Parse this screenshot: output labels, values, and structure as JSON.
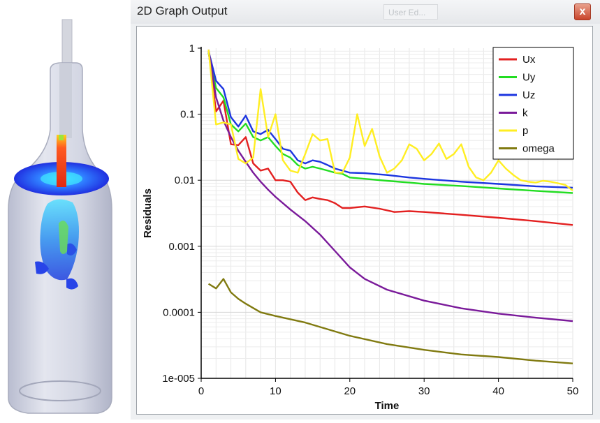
{
  "window": {
    "title": "2D Graph Output",
    "close_label": "x",
    "background_tab": "User Ed..."
  },
  "render_view": {
    "description_icon": "bottle-flow-render-icon"
  },
  "chart_data": {
    "type": "line",
    "title": "",
    "xlabel": "Time",
    "ylabel": "Residuals",
    "xlim": [
      0,
      50
    ],
    "ylim": [
      1e-05,
      1
    ],
    "yscale": "log",
    "grid": true,
    "legend_position": "top-right",
    "x_ticks": [
      0,
      10,
      20,
      30,
      40,
      50
    ],
    "x_tick_labels": [
      "0",
      "10",
      "20",
      "30",
      "40",
      "50"
    ],
    "y_ticks": [
      1,
      0.1,
      0.01,
      0.001,
      0.0001,
      1e-05
    ],
    "y_tick_labels": [
      "1",
      "0.1",
      "0.01",
      "0.001",
      "0.0001",
      "1e-005"
    ],
    "series": [
      {
        "name": "Ux",
        "color": "#e32020",
        "x": [
          1,
          2,
          3,
          4,
          5,
          6,
          7,
          8,
          9,
          10,
          11,
          12,
          13,
          14,
          15,
          16,
          17,
          18,
          19,
          20,
          22,
          24,
          26,
          28,
          30,
          35,
          40,
          45,
          50
        ],
        "y": [
          0.9,
          0.11,
          0.16,
          0.035,
          0.034,
          0.045,
          0.018,
          0.014,
          0.015,
          0.01,
          0.01,
          0.0095,
          0.0065,
          0.005,
          0.0055,
          0.0052,
          0.005,
          0.0045,
          0.0038,
          0.0038,
          0.004,
          0.0037,
          0.0033,
          0.0034,
          0.0033,
          0.003,
          0.0027,
          0.0024,
          0.0021
        ]
      },
      {
        "name": "Uy",
        "color": "#22dd22",
        "x": [
          1,
          2,
          3,
          4,
          5,
          6,
          7,
          8,
          9,
          10,
          11,
          12,
          13,
          14,
          15,
          16,
          17,
          18,
          19,
          20,
          22,
          25,
          28,
          30,
          35,
          40,
          45,
          50
        ],
        "y": [
          0.85,
          0.25,
          0.18,
          0.07,
          0.055,
          0.072,
          0.045,
          0.04,
          0.045,
          0.033,
          0.025,
          0.022,
          0.017,
          0.015,
          0.016,
          0.015,
          0.014,
          0.013,
          0.0125,
          0.011,
          0.0105,
          0.0098,
          0.0092,
          0.0088,
          0.0082,
          0.0075,
          0.0069,
          0.0064
        ]
      },
      {
        "name": "Uz",
        "color": "#1c35e0",
        "x": [
          1,
          2,
          3,
          4,
          5,
          6,
          7,
          8,
          9,
          10,
          11,
          12,
          13,
          14,
          15,
          16,
          17,
          18,
          19,
          20,
          22,
          25,
          28,
          30,
          35,
          40,
          45,
          50
        ],
        "y": [
          0.9,
          0.32,
          0.24,
          0.09,
          0.065,
          0.095,
          0.055,
          0.05,
          0.058,
          0.042,
          0.03,
          0.028,
          0.02,
          0.018,
          0.02,
          0.019,
          0.017,
          0.015,
          0.014,
          0.013,
          0.0128,
          0.012,
          0.011,
          0.0105,
          0.0095,
          0.0088,
          0.0081,
          0.0077
        ]
      },
      {
        "name": "k",
        "color": "#7a1a9a",
        "x": [
          1,
          2,
          3,
          4,
          5,
          6,
          7,
          8,
          9,
          10,
          12,
          14,
          16,
          18,
          20,
          22,
          25,
          30,
          35,
          40,
          45,
          50
        ],
        "y": [
          0.95,
          0.18,
          0.08,
          0.045,
          0.028,
          0.019,
          0.013,
          0.0095,
          0.0072,
          0.0056,
          0.0036,
          0.0024,
          0.0015,
          0.00085,
          0.00048,
          0.00032,
          0.00022,
          0.00015,
          0.000115,
          9.55e-05,
          8.3e-05,
          7.35e-05
        ]
      },
      {
        "name": "p",
        "color": "#ffee22",
        "x": [
          1,
          2,
          3,
          4,
          5,
          6,
          7,
          8,
          9,
          10,
          11,
          12,
          13,
          14,
          15,
          16,
          17,
          18,
          19,
          20,
          21,
          22,
          23,
          24,
          25,
          26,
          27,
          28,
          29,
          30,
          31,
          32,
          33,
          34,
          35,
          36,
          37,
          38,
          39,
          40,
          41,
          42,
          43,
          44,
          45,
          46,
          47,
          48,
          49,
          50
        ],
        "y": [
          0.95,
          0.07,
          0.075,
          0.07,
          0.021,
          0.018,
          0.022,
          0.24,
          0.045,
          0.1,
          0.02,
          0.014,
          0.013,
          0.025,
          0.05,
          0.04,
          0.042,
          0.013,
          0.013,
          0.022,
          0.1,
          0.033,
          0.06,
          0.023,
          0.013,
          0.015,
          0.02,
          0.035,
          0.03,
          0.02,
          0.025,
          0.036,
          0.021,
          0.025,
          0.035,
          0.016,
          0.011,
          0.01,
          0.013,
          0.02,
          0.015,
          0.012,
          0.01,
          0.0095,
          0.0092,
          0.0098,
          0.0095,
          0.009,
          0.0085,
          0.007
        ]
      },
      {
        "name": "omega",
        "color": "#807a10",
        "x": [
          1,
          2,
          3,
          4,
          5,
          6,
          8,
          10,
          14,
          20,
          25,
          30,
          35,
          40,
          45,
          50
        ],
        "y": [
          0.00027,
          0.00023,
          0.00032,
          0.0002,
          0.00016,
          0.000135,
          0.0001,
          8.8e-05,
          7e-05,
          4.4e-05,
          3.3e-05,
          2.7e-05,
          2.3e-05,
          2.1e-05,
          1.85e-05,
          1.68e-05
        ]
      }
    ]
  }
}
